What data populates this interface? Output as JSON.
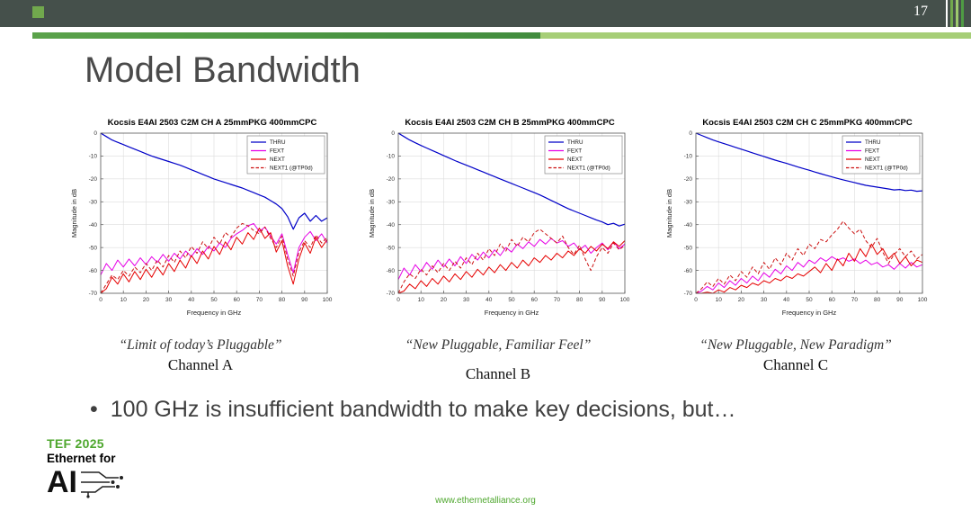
{
  "slide": {
    "number": "17",
    "title": "Model Bandwidth",
    "bullet_marker": "•",
    "bullet_text": "100 GHz is insufficient bandwidth to make key decisions, but…",
    "footer_url": "www.ethernetalliance.org"
  },
  "logo": {
    "line1": "TEF 2025",
    "line2": "Ethernet for",
    "line3": "AI"
  },
  "captions": [
    {
      "quote": "“Limit of today’s Pluggable”",
      "channel": "Channel A"
    },
    {
      "quote": "“New Pluggable, Familiar Feel”",
      "channel": "Channel B"
    },
    {
      "quote": "“New Pluggable, New Paradigm”",
      "channel": "Channel C"
    }
  ],
  "colors": {
    "top_bar": "#45504b",
    "accent_dark_green": "#4f9b44",
    "accent_light_green": "#a6ce77",
    "logo_green": "#4ea72e",
    "thru_blue": "#0000c8",
    "fext_magenta": "#e600e6",
    "next_red": "#e60000",
    "next1_red": "#cc1111"
  },
  "chart_data": [
    {
      "type": "line",
      "title": "Kocsis E4AI 2503 C2M CH A 25mmPKG 400mmCPC",
      "xlabel": "Frequency in GHz",
      "ylabel": "Magnitude in dB",
      "xlim": [
        0,
        100
      ],
      "ylim": [
        -70,
        0
      ],
      "xticks": [
        0,
        10,
        20,
        30,
        40,
        50,
        60,
        70,
        80,
        90,
        100
      ],
      "yticks": [
        0,
        -10,
        -20,
        -30,
        -40,
        -50,
        -60,
        -70
      ],
      "grid": true,
      "legend_position": "top-right",
      "x_start": 0,
      "x_step": 2.5,
      "series": [
        {
          "name": "THRU",
          "color": "#0000c8",
          "dashed": false,
          "values": [
            0,
            -1.5,
            -3,
            -4,
            -5,
            -6,
            -7,
            -8,
            -9,
            -10,
            -10.8,
            -11.6,
            -12.4,
            -13.2,
            -14,
            -15,
            -16,
            -17,
            -18,
            -19,
            -20,
            -20.8,
            -21.6,
            -22.4,
            -23.2,
            -24,
            -25,
            -26,
            -27,
            -28,
            -29.5,
            -31,
            -33,
            -36.5,
            -42,
            -37,
            -35,
            -38.5,
            -36,
            -38.5,
            -37
          ]
        },
        {
          "name": "FEXT",
          "color": "#e600e6",
          "dashed": false,
          "values": [
            -62,
            -57,
            -60,
            -55.5,
            -58.5,
            -55,
            -58,
            -54.5,
            -57.5,
            -54,
            -56.5,
            -53,
            -56,
            -52.5,
            -55,
            -51.5,
            -54,
            -50.5,
            -53,
            -49.5,
            -51.5,
            -48,
            -50,
            -46,
            -44,
            -42.5,
            -40.5,
            -39.5,
            -43,
            -41,
            -45,
            -48.5,
            -44,
            -53,
            -61,
            -50,
            -45.5,
            -43,
            -47,
            -44,
            -48
          ]
        },
        {
          "name": "NEXT",
          "color": "#e60000",
          "dashed": false,
          "values": [
            -70,
            -68,
            -63,
            -66,
            -61.5,
            -65,
            -60.5,
            -64,
            -59.5,
            -63,
            -58.5,
            -62,
            -57,
            -60.5,
            -55.5,
            -59,
            -53.5,
            -57,
            -51.5,
            -55,
            -49.5,
            -53,
            -47.5,
            -51,
            -45.5,
            -48.5,
            -43.5,
            -46.5,
            -41.5,
            -46,
            -43.5,
            -52,
            -47,
            -58,
            -66,
            -55,
            -48,
            -52.5,
            -45.5,
            -50,
            -46.5
          ]
        },
        {
          "name": "NEXT1 (@TP0d)",
          "color": "#cc1111",
          "dashed": true,
          "values": [
            -70,
            -66,
            -62,
            -64,
            -60,
            -62.5,
            -58.5,
            -61,
            -57,
            -60,
            -55.5,
            -58.5,
            -53.5,
            -56.5,
            -51.5,
            -54.5,
            -49.5,
            -52.5,
            -47.5,
            -50.5,
            -45.5,
            -48.5,
            -43.5,
            -45.5,
            -41.5,
            -39.5,
            -40.5,
            -42.5,
            -44,
            -41,
            -46,
            -50,
            -45,
            -55,
            -62.5,
            -52,
            -47,
            -50,
            -44.5,
            -48,
            -45.5
          ]
        }
      ]
    },
    {
      "type": "line",
      "title": "Kocsis E4AI 2503 C2M CH B 25mmPKG 400mmCPC",
      "xlabel": "Frequency in GHz",
      "ylabel": "Magnitude in dB",
      "xlim": [
        0,
        100
      ],
      "ylim": [
        -70,
        0
      ],
      "xticks": [
        0,
        10,
        20,
        30,
        40,
        50,
        60,
        70,
        80,
        90,
        100
      ],
      "yticks": [
        0,
        -10,
        -20,
        -30,
        -40,
        -50,
        -60,
        -70
      ],
      "grid": true,
      "legend_position": "top-right",
      "x_start": 0,
      "x_step": 2.5,
      "series": [
        {
          "name": "THRU",
          "color": "#0000c8",
          "dashed": false,
          "values": [
            0,
            -1.5,
            -3,
            -4.2,
            -5.4,
            -6.5,
            -7.6,
            -8.7,
            -9.8,
            -10.9,
            -12,
            -13,
            -14,
            -15,
            -16,
            -17,
            -18,
            -19,
            -20,
            -21,
            -22,
            -23,
            -24,
            -25,
            -26,
            -27,
            -28.2,
            -29.4,
            -30.6,
            -31.8,
            -33,
            -34,
            -35,
            -36,
            -37,
            -38,
            -38.8,
            -40,
            -39.4,
            -40.6,
            -39.8
          ]
        },
        {
          "name": "FEXT",
          "color": "#e600e6",
          "dashed": false,
          "values": [
            -64,
            -59,
            -62,
            -57.5,
            -60.5,
            -56.5,
            -59.5,
            -55.5,
            -58.5,
            -55,
            -58,
            -54,
            -57,
            -53,
            -55.5,
            -52,
            -54.5,
            -51,
            -53.5,
            -50,
            -52,
            -48.5,
            -50.5,
            -47.5,
            -49.5,
            -46.5,
            -48.5,
            -46,
            -48,
            -47,
            -49.5,
            -48,
            -51,
            -49,
            -52.5,
            -50,
            -48,
            -51,
            -47.5,
            -50.5,
            -48.5
          ]
        },
        {
          "name": "NEXT",
          "color": "#e60000",
          "dashed": false,
          "values": [
            -70,
            -69,
            -66,
            -68,
            -64.5,
            -67,
            -63.5,
            -66,
            -62.5,
            -65,
            -61.5,
            -64,
            -60.5,
            -63,
            -59.5,
            -62,
            -58.5,
            -61,
            -57.5,
            -60,
            -56.5,
            -59,
            -55.5,
            -58,
            -54.5,
            -56.5,
            -53.5,
            -55.5,
            -52.5,
            -54.5,
            -51.5,
            -53.5,
            -50.5,
            -52.5,
            -49.5,
            -51.5,
            -48.5,
            -50.5,
            -47.5,
            -49.5,
            -47
          ]
        },
        {
          "name": "NEXT1 (@TP0d)",
          "color": "#cc1111",
          "dashed": true,
          "values": [
            -70,
            -65,
            -61.5,
            -63.5,
            -59.5,
            -62,
            -58,
            -61,
            -57,
            -60,
            -56,
            -59,
            -54.5,
            -57.5,
            -52.5,
            -55.5,
            -50.5,
            -53.5,
            -48.5,
            -51.5,
            -46.5,
            -49.5,
            -45.5,
            -47.5,
            -43.5,
            -42,
            -44,
            -46,
            -48,
            -45,
            -50,
            -53,
            -49,
            -55,
            -60,
            -54,
            -50,
            -52.5,
            -48,
            -51,
            -49
          ]
        }
      ]
    },
    {
      "type": "line",
      "title": "Kocsis E4AI 2503 C2M CH C 25mmPKG 400mmCPC",
      "xlabel": "Frequency in GHz",
      "ylabel": "Magnitude in dB",
      "xlim": [
        0,
        100
      ],
      "ylim": [
        -70,
        0
      ],
      "xticks": [
        0,
        10,
        20,
        30,
        40,
        50,
        60,
        70,
        80,
        90,
        100
      ],
      "yticks": [
        0,
        -10,
        -20,
        -30,
        -40,
        -50,
        -60,
        -70
      ],
      "grid": true,
      "legend_position": "top-right",
      "x_start": 0,
      "x_step": 2.5,
      "series": [
        {
          "name": "THRU",
          "color": "#0000c8",
          "dashed": false,
          "values": [
            0,
            -1,
            -2,
            -3,
            -3.8,
            -4.6,
            -5.4,
            -6.2,
            -7,
            -7.8,
            -8.6,
            -9.4,
            -10.2,
            -11,
            -11.8,
            -12.5,
            -13.2,
            -14,
            -14.8,
            -15.5,
            -16.2,
            -17,
            -17.7,
            -18.4,
            -19.1,
            -19.8,
            -20.4,
            -21,
            -21.6,
            -22.2,
            -22.8,
            -23.2,
            -23.6,
            -24,
            -24.4,
            -24.8,
            -24.6,
            -25.1,
            -24.9,
            -25.4,
            -25.2
          ]
        },
        {
          "name": "FEXT",
          "color": "#e600e6",
          "dashed": false,
          "values": [
            -70,
            -69,
            -67,
            -68.5,
            -65.5,
            -67.5,
            -64.5,
            -66.5,
            -63.5,
            -65.5,
            -62.5,
            -64.5,
            -61,
            -63,
            -59.5,
            -61.5,
            -58,
            -60,
            -56.5,
            -58.5,
            -55.5,
            -57,
            -54.5,
            -56,
            -54,
            -55.5,
            -54.5,
            -56,
            -55,
            -57,
            -55.5,
            -57.5,
            -56.5,
            -58.5,
            -57.5,
            -59.5,
            -57,
            -59,
            -56.5,
            -58.5,
            -57.5
          ]
        },
        {
          "name": "NEXT",
          "color": "#e60000",
          "dashed": false,
          "values": [
            -70,
            -70,
            -69.5,
            -70,
            -68.5,
            -69.5,
            -67.5,
            -68.5,
            -66.5,
            -67.5,
            -65.5,
            -66.5,
            -64.5,
            -65.5,
            -63.5,
            -64.5,
            -62.5,
            -63.5,
            -61.5,
            -62.5,
            -60.5,
            -58.5,
            -61,
            -57,
            -60,
            -55,
            -58,
            -52.5,
            -56,
            -50.5,
            -54,
            -48.5,
            -53,
            -50.5,
            -55,
            -52.5,
            -57,
            -54,
            -58,
            -55.5,
            -56.5
          ]
        },
        {
          "name": "NEXT1 (@TP0d)",
          "color": "#cc1111",
          "dashed": true,
          "values": [
            -70,
            -68,
            -65,
            -67,
            -63.5,
            -66,
            -62,
            -64.5,
            -60.5,
            -63,
            -58.5,
            -61.5,
            -56.5,
            -59.5,
            -54.5,
            -57.5,
            -52.5,
            -55.5,
            -50.5,
            -53.5,
            -48.5,
            -50.5,
            -46.5,
            -47.5,
            -44.5,
            -42,
            -38.5,
            -41.5,
            -44,
            -42,
            -47,
            -50,
            -46,
            -52,
            -57,
            -53,
            -50.5,
            -54,
            -51.5,
            -55,
            -53
          ]
        }
      ]
    }
  ]
}
